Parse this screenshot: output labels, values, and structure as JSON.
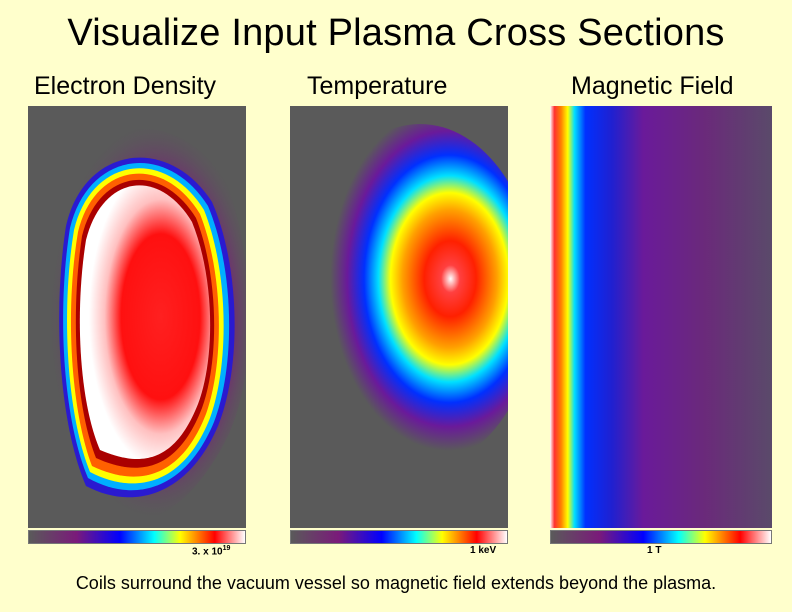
{
  "title": "Visualize Input Plasma Cross Sections",
  "panels": [
    {
      "name": "electron-density",
      "label": "Electron Density",
      "colorbar_label": "3. x 10",
      "colorbar_exponent": "19"
    },
    {
      "name": "temperature",
      "label": "Temperature",
      "colorbar_label": "1 keV"
    },
    {
      "name": "magnetic-field",
      "label": "Magnetic Field",
      "colorbar_label": "1 T"
    }
  ],
  "caption": "Coils surround the vacuum vessel so magnetic field extends beyond the plasma.",
  "colors": {
    "background": "#ffffcc",
    "panel_background": "#5a5a5a",
    "colormap": [
      "#5a5a5a",
      "#7a1a7a",
      "#0000ff",
      "#00ffff",
      "#ffff00",
      "#ff0000",
      "#ffffff"
    ]
  }
}
